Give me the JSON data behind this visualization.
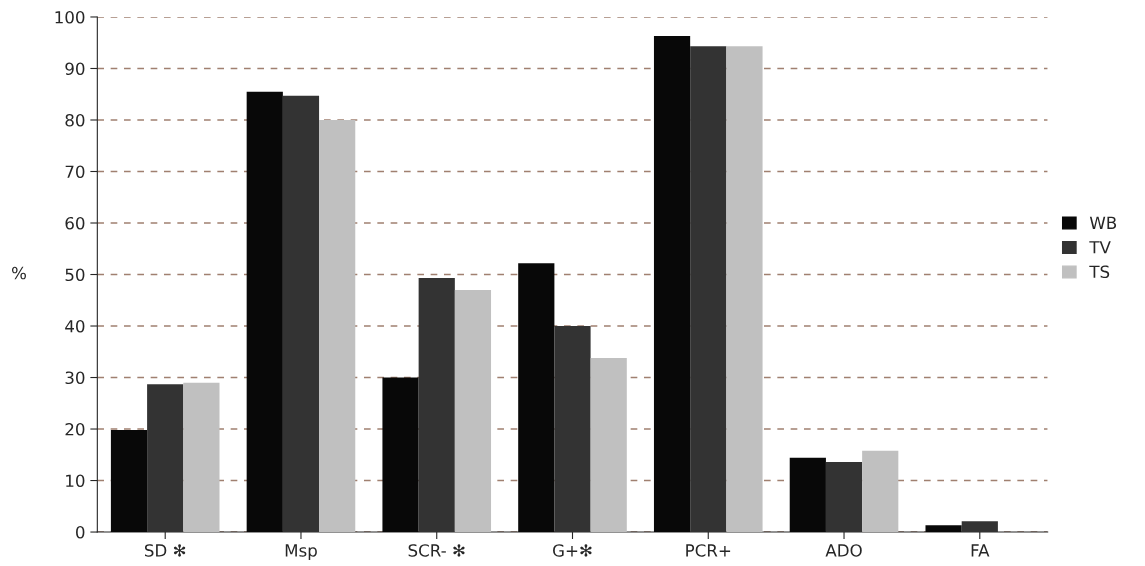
{
  "chart_data": {
    "type": "bar",
    "ylabel": "%",
    "categories": [
      "SD ✻",
      "Msp",
      "SCR- ✻",
      "G+✻",
      "PCR+",
      "ADO",
      "FA"
    ],
    "series": [
      {
        "name": "WB",
        "color": "#080808",
        "values": [
          19.8,
          85.5,
          30,
          52.2,
          96.3,
          14.4,
          1.3
        ]
      },
      {
        "name": "TV",
        "color": "#333333",
        "values": [
          28.7,
          84.7,
          49.3,
          40,
          94.3,
          13.6,
          2.1
        ]
      },
      {
        "name": "TS",
        "color": "#c0c0c0",
        "values": [
          29,
          80,
          47,
          33.8,
          94.3,
          15.8,
          null
        ]
      }
    ],
    "ylim": [
      0,
      100
    ],
    "yticks": [
      0,
      10,
      20,
      30,
      40,
      50,
      60,
      70,
      80,
      90,
      100
    ],
    "grid": "y",
    "legend": "right"
  }
}
